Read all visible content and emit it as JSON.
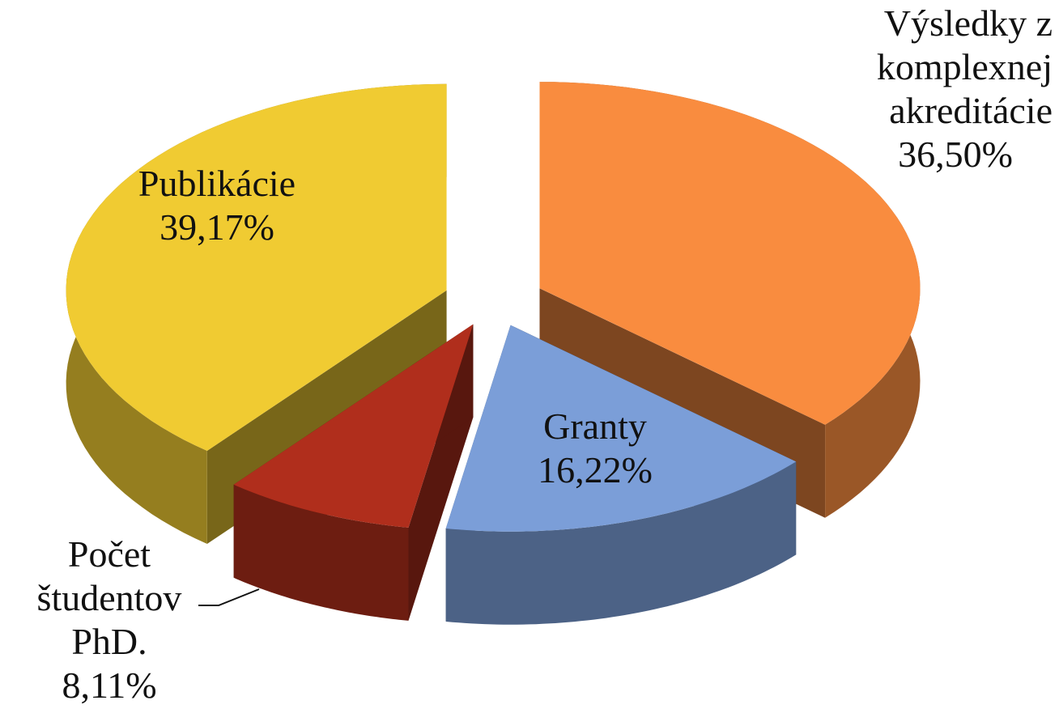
{
  "chart_data": {
    "type": "pie3d",
    "categories": [
      "Výsledky z komplexnej akreditácie",
      "Granty",
      "Počet študentov PhD.",
      "Publikácie"
    ],
    "values": [
      36.5,
      16.22,
      8.11,
      39.17
    ],
    "value_labels": [
      "36,50%",
      "16,22%",
      "8,11%",
      "39,17%"
    ],
    "colors": [
      "#f98c3f",
      "#7b9ed8",
      "#b02e1c",
      "#f0cb32"
    ]
  }
}
